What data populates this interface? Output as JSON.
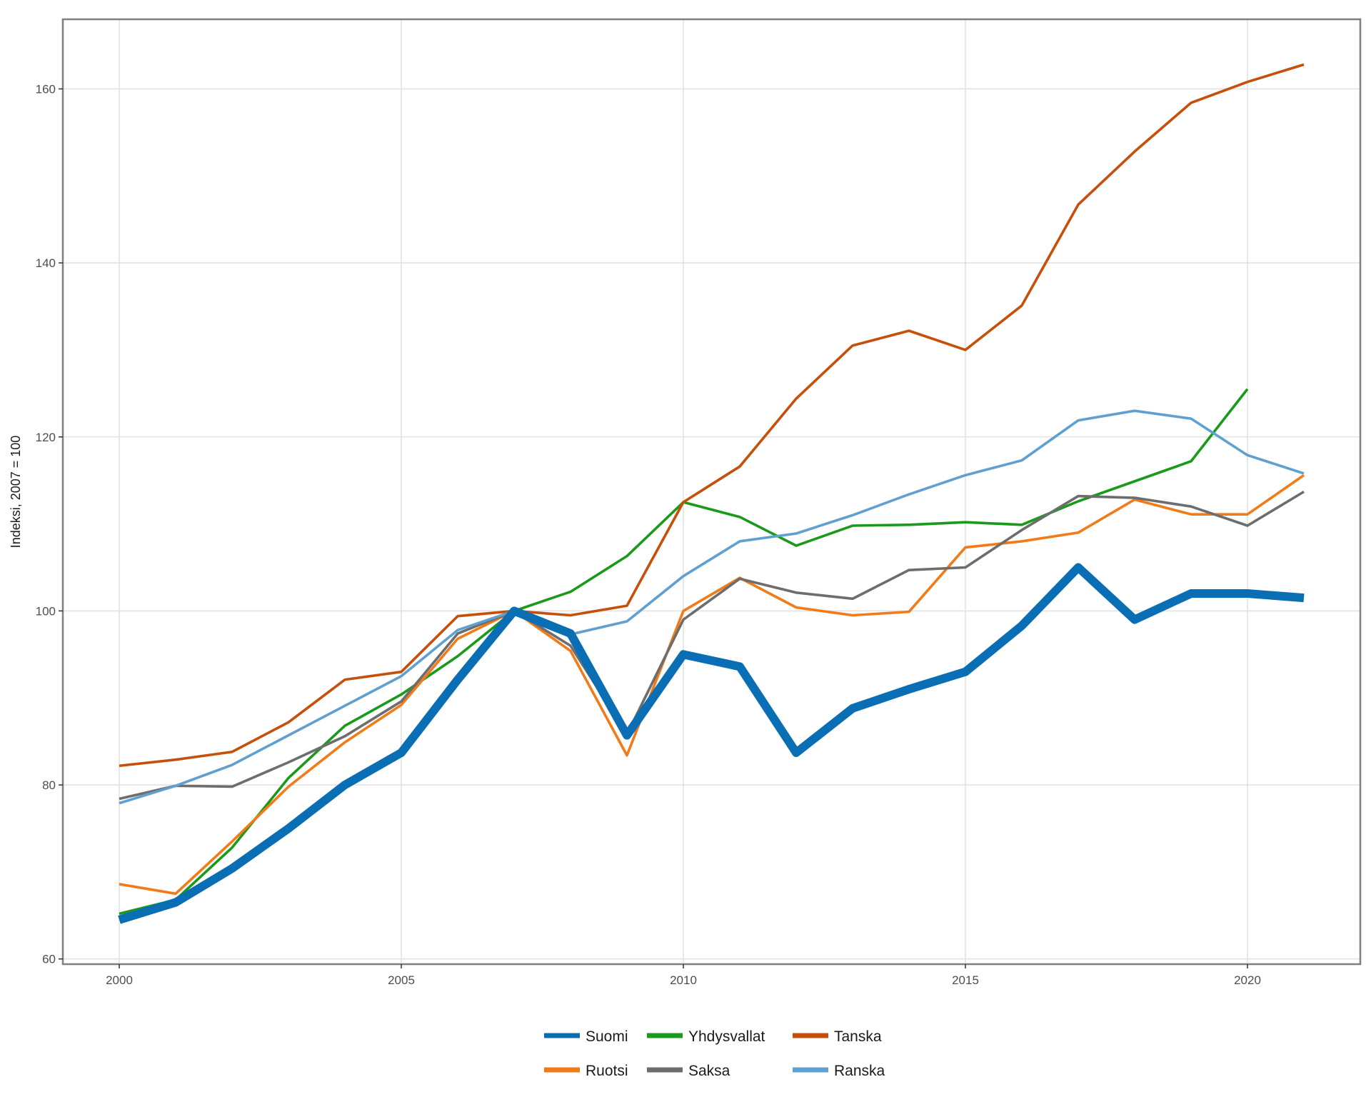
{
  "chart_data": {
    "type": "line",
    "xlabel": "",
    "ylabel": "Indeksi, 2007 = 100",
    "xlim": [
      1999,
      2022
    ],
    "ylim": [
      59.4,
      168
    ],
    "xticks": [
      2000,
      2005,
      2010,
      2015,
      2020
    ],
    "yticks": [
      60,
      80,
      100,
      120,
      140,
      160
    ],
    "grid": true,
    "legend_position": "bottom",
    "x": [
      2000,
      2001,
      2002,
      2003,
      2004,
      2005,
      2006,
      2007,
      2008,
      2009,
      2010,
      2011,
      2012,
      2013,
      2014,
      2015,
      2016,
      2017,
      2018,
      2019,
      2020,
      2021
    ],
    "series": [
      {
        "name": "Suomi",
        "color": "#0a6eb4",
        "emphasis": true,
        "values": [
          64.5,
          66.5,
          70.4,
          75.0,
          80.0,
          83.7,
          92.1,
          100.0,
          97.4,
          85.7,
          95.0,
          93.6,
          83.7,
          88.8,
          91.0,
          93.0,
          98.3,
          105.0,
          99.0,
          102.0,
          102.0,
          101.5
        ]
      },
      {
        "name": "Yhdysvallat",
        "color": "#1a9a1a",
        "values": [
          65.2,
          66.8,
          72.8,
          80.8,
          86.8,
          90.4,
          94.8,
          100.0,
          102.2,
          106.3,
          112.5,
          110.8,
          107.5,
          109.8,
          109.9,
          110.2,
          109.9,
          112.6,
          114.9,
          117.2,
          125.5,
          null
        ]
      },
      {
        "name": "Tanska",
        "color": "#c64f0a",
        "values": [
          82.2,
          82.9,
          83.8,
          87.2,
          92.1,
          93.0,
          99.4,
          100.0,
          99.5,
          100.6,
          112.5,
          116.6,
          124.4,
          130.5,
          132.2,
          130.0,
          135.1,
          146.7,
          152.8,
          158.4,
          160.8,
          162.8
        ]
      },
      {
        "name": "Ruotsi",
        "color": "#f27b18",
        "values": [
          68.6,
          67.5,
          73.5,
          79.8,
          84.9,
          89.2,
          96.8,
          100.0,
          95.4,
          83.4,
          100.0,
          103.8,
          100.4,
          99.5,
          99.9,
          107.3,
          108.0,
          109.0,
          112.8,
          111.1,
          111.1,
          115.6
        ]
      },
      {
        "name": "Saksa",
        "color": "#6d6d6d",
        "values": [
          78.4,
          79.9,
          79.8,
          82.6,
          85.6,
          89.6,
          97.4,
          100.0,
          96.0,
          85.8,
          99.0,
          103.7,
          102.1,
          101.4,
          104.7,
          105.0,
          109.3,
          113.2,
          113.0,
          112.0,
          109.8,
          113.7
        ]
      },
      {
        "name": "Ranska",
        "color": "#5fa0d0",
        "values": [
          77.9,
          79.9,
          82.3,
          85.7,
          89.1,
          92.5,
          97.8,
          100.0,
          97.3,
          98.8,
          104.0,
          108.0,
          108.9,
          111.0,
          113.4,
          115.6,
          117.3,
          121.9,
          123.0,
          122.1,
          117.9,
          115.8
        ]
      }
    ],
    "legend_layout": [
      [
        "Suomi",
        "Yhdysvallat",
        "Tanska"
      ],
      [
        "Ruotsi",
        "Saksa",
        "Ranska"
      ]
    ]
  }
}
